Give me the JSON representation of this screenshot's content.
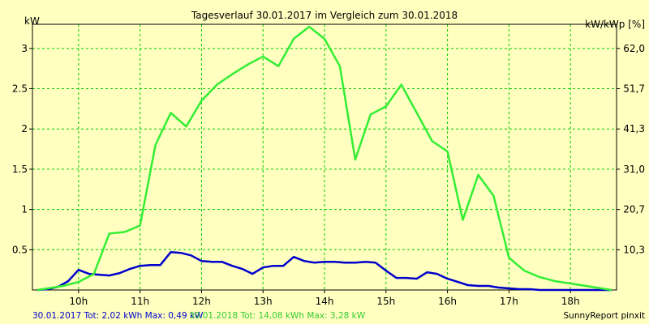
{
  "chart_data": {
    "type": "line",
    "title": "Tagesverlauf 30.01.2017 im Vergleich zum 30.01.2018",
    "ylabel_left": "kW",
    "ylabel_right": "kW/kWp [%]",
    "y_ticks": [
      "3",
      "2.5",
      "2",
      "1.5",
      "1",
      "0.5"
    ],
    "y_tick_values": [
      3,
      2.5,
      2,
      1.5,
      1,
      0.5
    ],
    "right_ticks": [
      "62,0",
      "51,7",
      "41,3",
      "31,0",
      "20,7",
      "10,3"
    ],
    "x_ticks": [
      "10h",
      "11h",
      "12h",
      "13h",
      "14h",
      "15h",
      "16h",
      "17h",
      "18h"
    ],
    "x_tick_values": [
      10,
      11,
      12,
      13,
      14,
      15,
      16,
      17,
      18
    ],
    "xlim": [
      9.25,
      18.75
    ],
    "ylim": [
      0,
      3.3
    ],
    "grid": true,
    "series": [
      {
        "name": "30.01.2017",
        "color": "#0000cc",
        "x": [
          9.33,
          9.5,
          9.67,
          9.83,
          10.0,
          10.17,
          10.33,
          10.5,
          10.67,
          10.83,
          11.0,
          11.17,
          11.33,
          11.5,
          11.67,
          11.83,
          12.0,
          12.17,
          12.33,
          12.5,
          12.67,
          12.83,
          13.0,
          13.17,
          13.33,
          13.5,
          13.67,
          13.83,
          14.0,
          14.17,
          14.33,
          14.5,
          14.67,
          14.83,
          15.0,
          15.17,
          15.33,
          15.5,
          15.67,
          15.83,
          16.0,
          16.17,
          16.33,
          16.5,
          16.67,
          16.83,
          17.0,
          17.17,
          17.33,
          17.5,
          17.67,
          17.83,
          18.0,
          18.17,
          18.33,
          18.5,
          18.67
        ],
        "y": [
          0.0,
          0.01,
          0.04,
          0.11,
          0.25,
          0.2,
          0.19,
          0.18,
          0.21,
          0.26,
          0.3,
          0.31,
          0.31,
          0.47,
          0.46,
          0.43,
          0.36,
          0.35,
          0.35,
          0.3,
          0.26,
          0.2,
          0.28,
          0.3,
          0.3,
          0.41,
          0.36,
          0.34,
          0.35,
          0.35,
          0.34,
          0.34,
          0.35,
          0.34,
          0.24,
          0.15,
          0.15,
          0.14,
          0.22,
          0.2,
          0.14,
          0.1,
          0.06,
          0.05,
          0.05,
          0.03,
          0.02,
          0.01,
          0.01,
          0.0,
          0.0,
          0.0,
          0.0,
          0.0,
          0.0,
          0.0,
          0.0
        ]
      },
      {
        "name": "30.01.2018",
        "color": "#33ee33",
        "x": [
          9.33,
          9.5,
          9.75,
          10.0,
          10.25,
          10.5,
          10.75,
          11.0,
          11.25,
          11.5,
          11.75,
          12.0,
          12.25,
          12.5,
          12.75,
          13.0,
          13.25,
          13.5,
          13.75,
          14.0,
          14.25,
          14.5,
          14.75,
          15.0,
          15.25,
          15.5,
          15.75,
          16.0,
          16.25,
          16.5,
          16.75,
          17.0,
          17.25,
          17.5,
          17.75,
          18.0,
          18.25,
          18.5,
          18.67
        ],
        "y": [
          0.0,
          0.02,
          0.05,
          0.1,
          0.2,
          0.7,
          0.72,
          0.8,
          1.8,
          2.2,
          2.03,
          2.35,
          2.55,
          2.68,
          2.8,
          2.9,
          2.78,
          3.12,
          3.27,
          3.12,
          2.78,
          1.62,
          2.18,
          2.28,
          2.55,
          2.2,
          1.85,
          1.72,
          0.87,
          1.43,
          1.17,
          0.4,
          0.24,
          0.16,
          0.11,
          0.08,
          0.05,
          0.02,
          0.0
        ]
      }
    ],
    "footer": {
      "series1_summary": "30.01.2017 Tot: 2,02 kWh Max: 0,49 kW",
      "series2_summary": "30.01.2018 Tot: 14,08 kWh Max: 3,28 kW",
      "credit": "SunnyReport pinxit"
    }
  },
  "colors": {
    "background": "#ffffc0",
    "plot_background": "#ffffc0",
    "grid": "#00cc00",
    "axis": "#000000",
    "series1": "#0000cc",
    "series2": "#33ee33"
  }
}
